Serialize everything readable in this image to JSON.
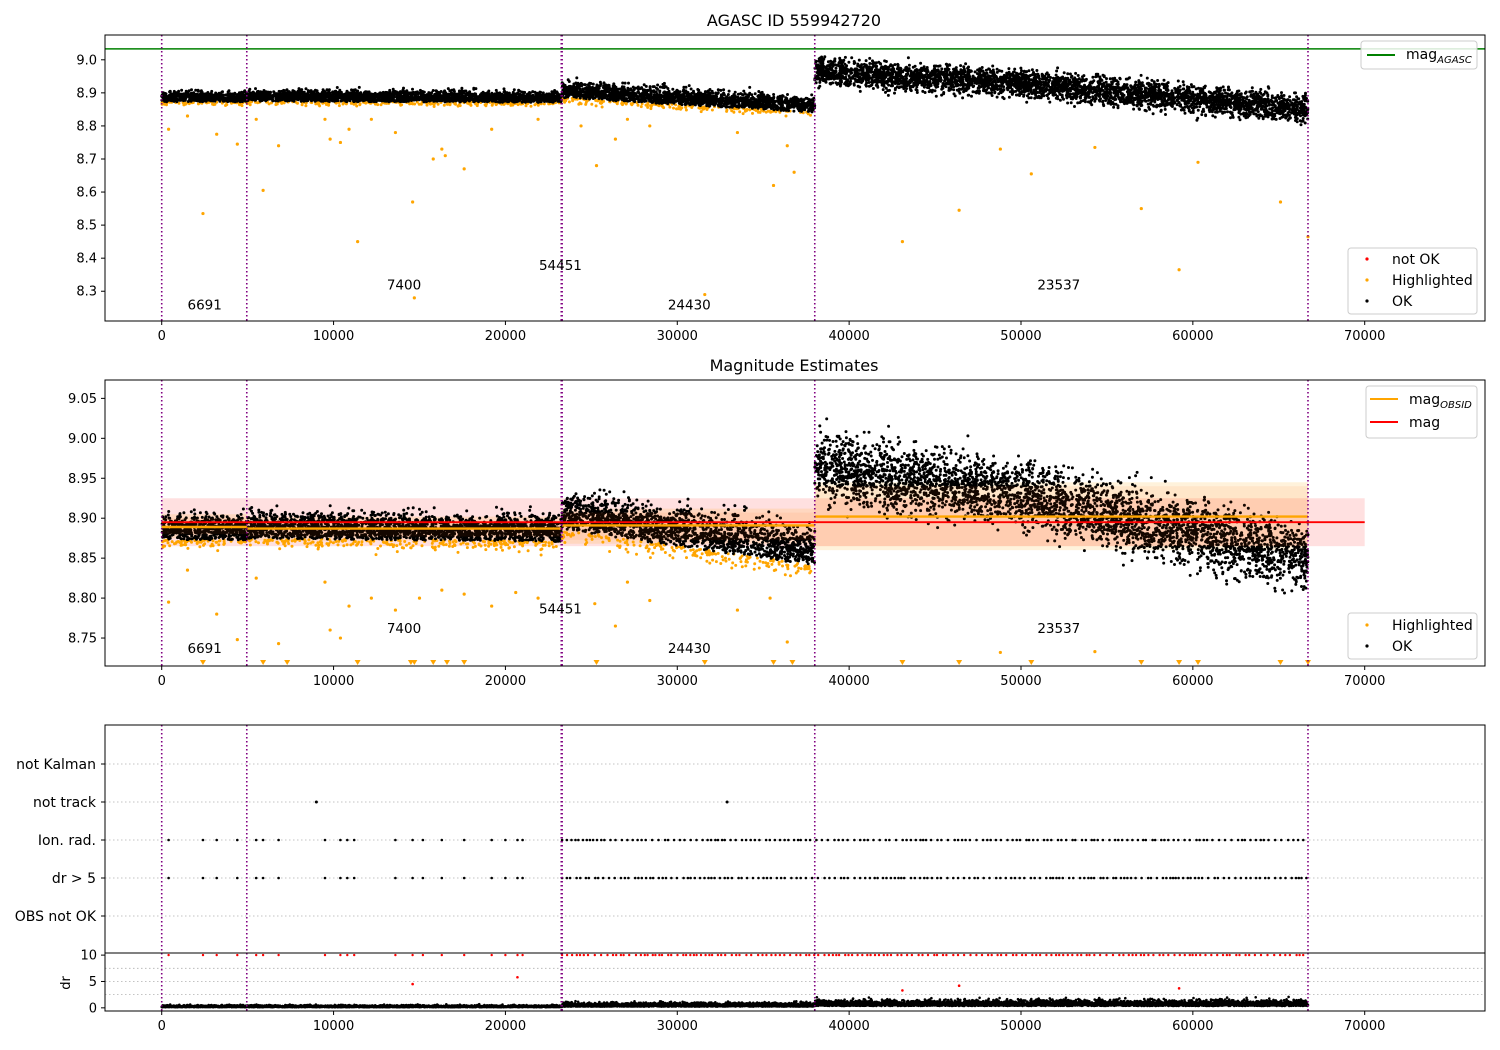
{
  "chart_data": [
    {
      "type": "scatter",
      "title": "AGASC ID 559942720",
      "xlabel": "",
      "ylabel": "",
      "xlim": [
        -3300,
        77000
      ],
      "ylim": [
        8.21,
        9.075
      ],
      "xticks": [
        0,
        10000,
        20000,
        30000,
        40000,
        50000,
        60000,
        70000
      ],
      "yticks": [
        8.3,
        8.4,
        8.5,
        8.6,
        8.7,
        8.8,
        8.9,
        9.0
      ],
      "ytick_labels": [
        "8.3",
        "8.4",
        "8.5",
        "8.6",
        "8.7",
        "8.8",
        "8.9",
        "9.0"
      ],
      "observation_boundaries": [
        0,
        4950,
        23250,
        23300,
        38000,
        66700
      ],
      "mag_agasc": 9.033,
      "observation_labels": [
        {
          "text": "6691",
          "x": 2500,
          "y": 8.245
        },
        {
          "text": "7400",
          "x": 14100,
          "y": 8.305
        },
        {
          "text": "54451",
          "x": 23200,
          "y": 8.365
        },
        {
          "text": "24430",
          "x": 30700,
          "y": 8.245
        },
        {
          "text": "23537",
          "x": 52200,
          "y": 8.305
        }
      ],
      "trend": [
        {
          "x0": 0,
          "x1": 4950,
          "y0": 8.885,
          "y1": 8.885,
          "spread": 0.022
        },
        {
          "x0": 4950,
          "x1": 23250,
          "y0": 8.888,
          "y1": 8.884,
          "spread": 0.024
        },
        {
          "x0": 23300,
          "x1": 38000,
          "y0": 8.905,
          "y1": 8.86,
          "spread": 0.035
        },
        {
          "x0": 38000,
          "x1": 50000,
          "y0": 8.965,
          "y1": 8.93,
          "spread": 0.05
        },
        {
          "x0": 50000,
          "x1": 66700,
          "y0": 8.93,
          "y1": 8.85,
          "spread": 0.05
        }
      ],
      "highlighted_outliers": [
        [
          400,
          8.79
        ],
        [
          1500,
          8.83
        ],
        [
          2400,
          8.535
        ],
        [
          3200,
          8.775
        ],
        [
          4400,
          8.745
        ],
        [
          5500,
          8.82
        ],
        [
          5900,
          8.605
        ],
        [
          6800,
          8.74
        ],
        [
          9500,
          8.82
        ],
        [
          9800,
          8.76
        ],
        [
          10400,
          8.75
        ],
        [
          10900,
          8.79
        ],
        [
          11400,
          8.45
        ],
        [
          12200,
          8.82
        ],
        [
          13600,
          8.78
        ],
        [
          14600,
          8.57
        ],
        [
          14700,
          8.28
        ],
        [
          15800,
          8.7
        ],
        [
          16300,
          8.73
        ],
        [
          16500,
          8.71
        ],
        [
          17600,
          8.67
        ],
        [
          19200,
          8.79
        ],
        [
          21900,
          8.82
        ],
        [
          24400,
          8.8
        ],
        [
          25300,
          8.68
        ],
        [
          26400,
          8.76
        ],
        [
          27100,
          8.82
        ],
        [
          28400,
          8.8
        ],
        [
          31600,
          8.29
        ],
        [
          33500,
          8.78
        ],
        [
          35600,
          8.62
        ],
        [
          36400,
          8.74
        ],
        [
          36800,
          8.66
        ],
        [
          43100,
          8.45
        ],
        [
          46400,
          8.545
        ],
        [
          48800,
          8.73
        ],
        [
          50600,
          8.655
        ],
        [
          54300,
          8.735
        ],
        [
          57000,
          8.55
        ],
        [
          59200,
          8.365
        ],
        [
          60300,
          8.69
        ],
        [
          65100,
          8.57
        ],
        [
          66700,
          8.465
        ]
      ],
      "legend_lines": [
        {
          "label": "mag",
          "sub": "AGASC",
          "color": "#008000"
        }
      ],
      "legend_markers": [
        {
          "label": "not OK",
          "color": "#ff0000"
        },
        {
          "label": "Highlighted",
          "color": "#ffa500"
        },
        {
          "label": "OK",
          "color": "#000000"
        }
      ]
    },
    {
      "type": "scatter",
      "title": "Magnitude Estimates",
      "xlabel": "",
      "ylabel": "",
      "xlim": [
        -3300,
        77000
      ],
      "ylim": [
        8.715,
        9.073
      ],
      "xticks": [
        0,
        10000,
        20000,
        30000,
        40000,
        50000,
        60000,
        70000
      ],
      "yticks": [
        8.75,
        8.8,
        8.85,
        8.9,
        8.95,
        9.0,
        9.05
      ],
      "ytick_labels": [
        "8.75",
        "8.80",
        "8.85",
        "8.90",
        "8.95",
        "9.00",
        "9.05"
      ],
      "observation_boundaries": [
        0,
        4950,
        23250,
        23300,
        38000,
        66700
      ],
      "mag": 8.895,
      "mag_band": [
        8.865,
        8.925
      ],
      "mag_obsid": [
        {
          "x0": 0,
          "x1": 4950,
          "mag": 8.889,
          "band": [
            8.875,
            8.905
          ]
        },
        {
          "x0": 4950,
          "x1": 23250,
          "mag": 8.887,
          "band": [
            8.872,
            8.902
          ]
        },
        {
          "x0": 23300,
          "x1": 38000,
          "mag": 8.891,
          "band": [
            8.868,
            8.912
          ]
        },
        {
          "x0": 38000,
          "x1": 66700,
          "mag": 8.902,
          "band": [
            8.86,
            8.945
          ]
        }
      ],
      "observation_labels": [
        {
          "text": "6691",
          "x": 2500,
          "y": 8.731
        },
        {
          "text": "7400",
          "x": 14100,
          "y": 8.756
        },
        {
          "text": "54451",
          "x": 23200,
          "y": 8.781
        },
        {
          "text": "24430",
          "x": 30700,
          "y": 8.731
        },
        {
          "text": "23537",
          "x": 52200,
          "y": 8.756
        }
      ],
      "trend": [
        {
          "x0": 0,
          "x1": 4950,
          "y0": 8.885,
          "y1": 8.885,
          "spread": 0.022
        },
        {
          "x0": 4950,
          "x1": 23250,
          "y0": 8.888,
          "y1": 8.884,
          "spread": 0.024
        },
        {
          "x0": 23300,
          "x1": 38000,
          "y0": 8.905,
          "y1": 8.86,
          "spread": 0.035
        },
        {
          "x0": 38000,
          "x1": 50000,
          "y0": 8.965,
          "y1": 8.93,
          "spread": 0.05
        },
        {
          "x0": 50000,
          "x1": 66700,
          "y0": 8.93,
          "y1": 8.85,
          "spread": 0.05
        }
      ],
      "highlighted_outliers": [
        [
          400,
          8.795
        ],
        [
          1500,
          8.835
        ],
        [
          3200,
          8.78
        ],
        [
          4400,
          8.748
        ],
        [
          5500,
          8.825
        ],
        [
          6800,
          8.743
        ],
        [
          9500,
          8.82
        ],
        [
          9800,
          8.76
        ],
        [
          10400,
          8.75
        ],
        [
          10900,
          8.79
        ],
        [
          12200,
          8.8
        ],
        [
          13600,
          8.785
        ],
        [
          15000,
          8.8
        ],
        [
          16300,
          8.81
        ],
        [
          17600,
          8.805
        ],
        [
          19200,
          8.79
        ],
        [
          20600,
          8.807
        ],
        [
          21900,
          8.8
        ],
        [
          25200,
          8.793
        ],
        [
          26400,
          8.765
        ],
        [
          27100,
          8.82
        ],
        [
          28400,
          8.797
        ],
        [
          33500,
          8.785
        ],
        [
          35400,
          8.8
        ],
        [
          36400,
          8.745
        ],
        [
          48800,
          8.732
        ],
        [
          54300,
          8.733
        ]
      ],
      "floor_outliers": [
        2400,
        5900,
        7300,
        11400,
        14500,
        14700,
        15800,
        16600,
        17600,
        25300,
        31600,
        35600,
        36700,
        43100,
        46400,
        50600,
        57000,
        59200,
        60300,
        65100,
        66700
      ],
      "legend_lines": [
        {
          "label": "mag",
          "sub": "OBSID",
          "color": "#ffa500"
        },
        {
          "label": "mag",
          "sub": "",
          "color": "#ff0000"
        }
      ],
      "legend_markers": [
        {
          "label": "Highlighted",
          "color": "#ffa500"
        },
        {
          "label": "OK",
          "color": "#000000"
        }
      ]
    },
    {
      "type": "scatter",
      "title": "",
      "xlabel": "",
      "ylabel": "",
      "xlim": [
        -3300,
        77000
      ],
      "categories": [
        "OBS not OK",
        "dr > 5",
        "Ion. rad.",
        "not track",
        "not Kalman"
      ],
      "observation_boundaries": [
        0,
        4950,
        23250,
        23300,
        38000,
        66700
      ],
      "not_track": [
        9000,
        32900
      ],
      "flag_sparse_x": [
        400,
        2400,
        3200,
        4400,
        5500,
        5900,
        6800,
        9500,
        10400,
        10800,
        11200,
        13600,
        14600,
        15200,
        16300,
        17600,
        19200,
        20000,
        20700,
        21000
      ],
      "flag_dense_range": [
        23300,
        66700
      ]
    },
    {
      "type": "scatter",
      "title": "",
      "xlabel": "",
      "ylabel": "dr",
      "xlim": [
        -3300,
        77000
      ],
      "ylim": [
        -0.6,
        10.4
      ],
      "xticks": [
        0,
        10000,
        20000,
        30000,
        40000,
        50000,
        60000,
        70000
      ],
      "yticks": [
        0,
        5,
        10
      ],
      "ytick_labels": [
        "0",
        "5",
        "10"
      ],
      "observation_boundaries": [
        0,
        4950,
        23250,
        23300,
        38000,
        66700
      ],
      "dr_clipped_value": 10,
      "dr_outliers": [
        [
          14600,
          4.5
        ],
        [
          20700,
          5.8
        ],
        [
          43100,
          3.3
        ],
        [
          46400,
          4.2
        ],
        [
          59200,
          3.7
        ]
      ]
    }
  ]
}
